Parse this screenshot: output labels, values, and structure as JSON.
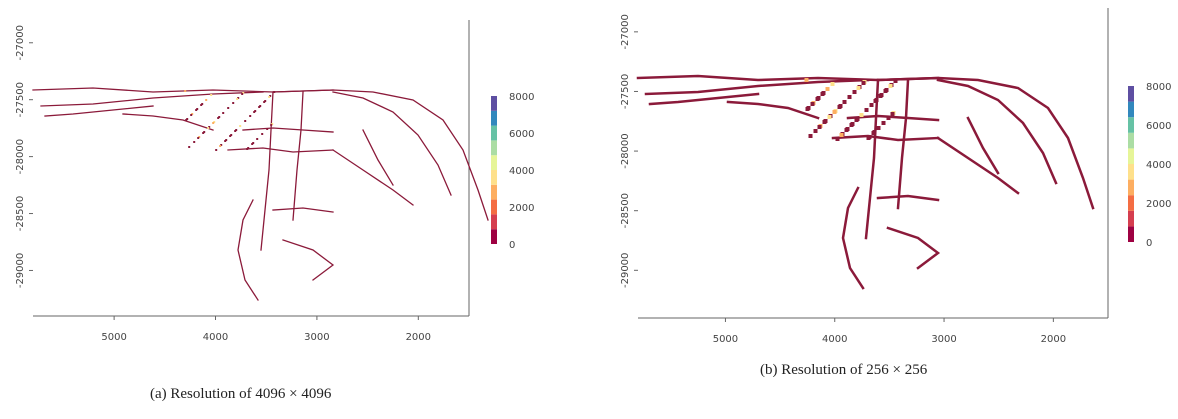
{
  "figures": [
    {
      "caption": "(a) Resolution of 4096 × 4096",
      "chart_data": {
        "type": "heatmap",
        "x_ticks": [
          "5000",
          "4000",
          "3000",
          "2000"
        ],
        "y_ticks": [
          "-27000",
          "-27500",
          "-28000",
          "-28500",
          "-29000"
        ],
        "xlim": [
          5800,
          1500
        ],
        "ylim": [
          -29400,
          -26800
        ],
        "colorbar": {
          "ticks": [
            "8000",
            "6000",
            "4000",
            "2000",
            "0"
          ],
          "range": [
            0,
            8000
          ]
        },
        "grid": false,
        "legend": "right"
      }
    },
    {
      "caption": "(b) Resolution of 256 × 256",
      "chart_data": {
        "type": "heatmap",
        "x_ticks": [
          "5000",
          "4000",
          "3000",
          "2000"
        ],
        "y_ticks": [
          "-27000",
          "-27500",
          "-28000",
          "-28500",
          "-29000"
        ],
        "xlim": [
          5800,
          1500
        ],
        "ylim": [
          -29400,
          -26800
        ],
        "colorbar": {
          "ticks": [
            "8000",
            "6000",
            "4000",
            "2000",
            "0"
          ],
          "range": [
            0,
            8000
          ]
        },
        "grid": false,
        "legend": "right"
      }
    }
  ],
  "colors": {
    "road": "#8b1a3a",
    "scale": [
      "#9e0142",
      "#d53e4f",
      "#f46d43",
      "#fdae61",
      "#fee08b",
      "#e6f598",
      "#abdda4",
      "#66c2a5",
      "#3288bd",
      "#5e4fa2"
    ]
  }
}
